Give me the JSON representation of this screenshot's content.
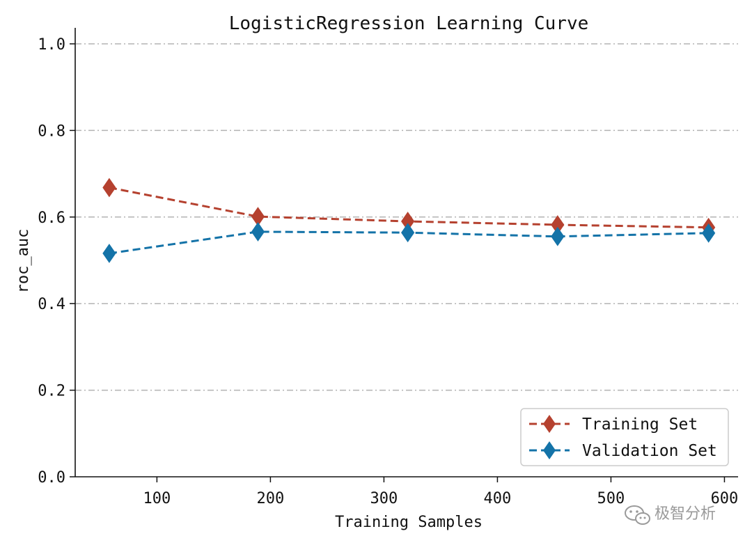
{
  "chart_data": {
    "type": "line",
    "title": "LogisticRegression Learning Curve",
    "xlabel": "Training Samples",
    "ylabel": "roc_auc",
    "xlim": [
      28,
      612
    ],
    "ylim": [
      0.0,
      1.0
    ],
    "x": [
      58,
      189,
      321,
      453,
      586
    ],
    "xticks": [
      100,
      200,
      300,
      400,
      500,
      600
    ],
    "xtick_labels": [
      "100",
      "200",
      "300",
      "400",
      "500",
      "600"
    ],
    "yticks": [
      0.0,
      0.2,
      0.4,
      0.6,
      0.8,
      1.0
    ],
    "ytick_labels": [
      "0.0",
      "0.2",
      "0.4",
      "0.6",
      "0.8",
      "1.0"
    ],
    "grid": "y",
    "legend_position": "lower-right",
    "series": [
      {
        "name": "Training Set",
        "values": [
          0.668,
          0.601,
          0.59,
          0.582,
          0.576
        ],
        "color": "#b5412f",
        "marker": "diamond",
        "linestyle": "dashed"
      },
      {
        "name": "Validation Set",
        "values": [
          0.516,
          0.566,
          0.564,
          0.555,
          0.563
        ],
        "color": "#1473a8",
        "marker": "diamond",
        "linestyle": "dashed"
      }
    ]
  },
  "watermark": {
    "text": "极智分析",
    "icon": "wechat-icon"
  }
}
